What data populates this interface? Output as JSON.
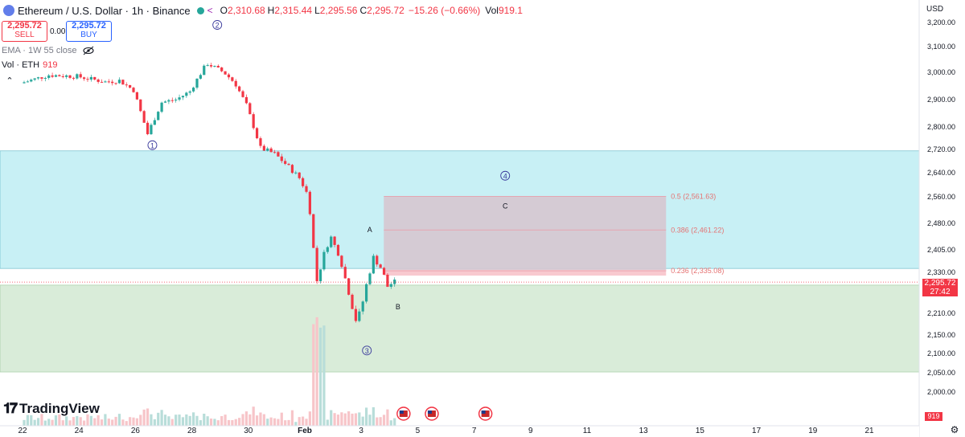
{
  "header": {
    "symbol": "Ethereum / U.S. Dollar · 1h · Binance",
    "open_label": "O",
    "open": "2,310.68",
    "high_label": "H",
    "high": "2,315.44",
    "low_label": "L",
    "low": "2,295.56",
    "close_label": "C",
    "close": "2,295.72",
    "change": "−15.26 (−0.66%)",
    "vol_label": "Vol",
    "vol": "919.1"
  },
  "trade": {
    "sell_price": "2,295.72",
    "sell_label": "SELL",
    "spread": "0.00",
    "buy_price": "2,295.72",
    "buy_label": "BUY"
  },
  "indicators": {
    "ema_label": "EMA · 1W 55 close",
    "vol_label": "Vol · ETH",
    "vol_value": "919"
  },
  "currency": "USD",
  "price_tag": {
    "price": "2,295.72",
    "countdown": "27:42"
  },
  "vol_tag": "919",
  "brand": "TradingView",
  "colors": {
    "up": "#26a69a",
    "down": "#f23645",
    "supply_zone": "#c8f0f5",
    "demand_zone": "#d9ecd9",
    "fib_box": "#d6c7d0",
    "fib_text": "#e57373",
    "wave_label": "#3b3b9c"
  },
  "chart_data": {
    "type": "candlestick",
    "ylim": [
      1950,
      3230
    ],
    "y_ticks": [
      "2,000.00",
      "2,050.00",
      "2,100.00",
      "2,150.00",
      "2,210.00",
      "2,265.00",
      "2,330.00",
      "2,405.00",
      "2,480.00",
      "2,560.00",
      "2,640.00",
      "2,720.00",
      "2,800.00",
      "2,900.00",
      "3,000.00",
      "3,100.00",
      "3,200.00"
    ],
    "x_ticks": [
      "22",
      "24",
      "26",
      "28",
      "30",
      "Feb",
      "3",
      "5",
      "7",
      "9",
      "11",
      "13",
      "15",
      "17",
      "19",
      "21"
    ],
    "price_path": [
      {
        "x": 0.0,
        "y": 2960
      },
      {
        "x": 1.0,
        "y": 2990
      },
      {
        "x": 2.0,
        "y": 2985
      },
      {
        "x": 3.0,
        "y": 2965
      },
      {
        "x": 3.5,
        "y": 2970
      },
      {
        "x": 4.0,
        "y": 2935
      },
      {
        "x": 4.3,
        "y": 2840
      },
      {
        "x": 4.5,
        "y": 2775
      },
      {
        "x": 5.0,
        "y": 2890
      },
      {
        "x": 5.5,
        "y": 2900
      },
      {
        "x": 6.0,
        "y": 2930
      },
      {
        "x": 6.6,
        "y": 3035
      },
      {
        "x": 7.2,
        "y": 3000
      },
      {
        "x": 7.6,
        "y": 2960
      },
      {
        "x": 8.0,
        "y": 2880
      },
      {
        "x": 8.5,
        "y": 2725
      },
      {
        "x": 9.0,
        "y": 2705
      },
      {
        "x": 9.5,
        "y": 2660
      },
      {
        "x": 9.9,
        "y": 2620
      },
      {
        "x": 10.2,
        "y": 2560
      },
      {
        "x": 10.5,
        "y": 2300
      },
      {
        "x": 10.8,
        "y": 2410
      },
      {
        "x": 11.0,
        "y": 2440
      },
      {
        "x": 11.3,
        "y": 2385
      },
      {
        "x": 11.6,
        "y": 2270
      },
      {
        "x": 11.9,
        "y": 2185
      },
      {
        "x": 12.1,
        "y": 2230
      },
      {
        "x": 12.3,
        "y": 2305
      },
      {
        "x": 12.5,
        "y": 2380
      },
      {
        "x": 12.8,
        "y": 2340
      },
      {
        "x": 13.0,
        "y": 2280
      },
      {
        "x": 13.2,
        "y": 2296
      }
    ],
    "zones": [
      {
        "name": "supply",
        "y_top": 2715,
        "y_bottom": 2343
      },
      {
        "name": "demand",
        "y_top": 2285,
        "y_bottom": 2052
      }
    ],
    "fib_box": {
      "x_start": 12.8,
      "x_end": 22.8,
      "y_top": 2561.63,
      "y_bottom": 2335.08
    },
    "fib_levels": [
      {
        "label": "0.5 (2,561.63)",
        "value": 2561.63
      },
      {
        "label": "0.386 (2,461.22)",
        "value": 2461.22
      },
      {
        "label": "0.236 (2,335.08)",
        "value": 2335.08
      }
    ],
    "current_price_line": 2295.72,
    "wave_labels": [
      {
        "text": "①",
        "x": 4.6,
        "y": 2735
      },
      {
        "text": "②",
        "x": 6.9,
        "y": 3190
      },
      {
        "text": "③",
        "x": 12.2,
        "y": 2108
      },
      {
        "text": "④",
        "x": 17.1,
        "y": 2630
      }
    ],
    "annotations": [
      {
        "text": "A",
        "x": 12.3,
        "y": 2455
      },
      {
        "text": "B",
        "x": 13.3,
        "y": 2220
      },
      {
        "text": "C",
        "x": 17.1,
        "y": 2525
      }
    ],
    "event_icons": [
      {
        "x": 13.5
      },
      {
        "x": 14.5
      },
      {
        "x": 16.4
      }
    ]
  }
}
